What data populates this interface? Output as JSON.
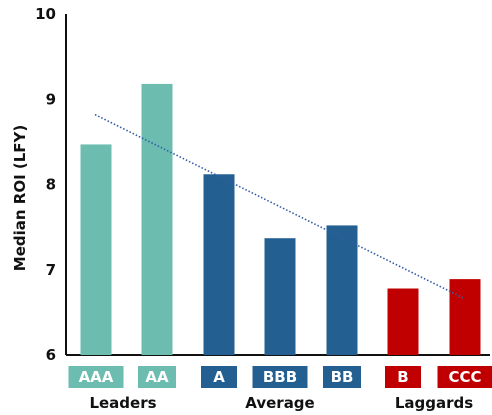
{
  "chart_data": {
    "type": "bar",
    "ylabel": "Median ROI (LFY)",
    "ylim": [
      6,
      10
    ],
    "yticks": [
      "6",
      "7",
      "8",
      "9",
      "10"
    ],
    "grid": false,
    "categories": [
      "AAA",
      "AA",
      "A",
      "BBB",
      "BB",
      "B",
      "CCC"
    ],
    "values": [
      8.47,
      9.18,
      8.12,
      7.37,
      7.52,
      6.78,
      6.89
    ],
    "bar_colors": [
      "#6dbcb0",
      "#6dbcb0",
      "#245f91",
      "#245f91",
      "#245f91",
      "#c00000",
      "#c00000"
    ],
    "groups": [
      {
        "label": "Leaders",
        "members": [
          "AAA",
          "AA"
        ],
        "color": "#6dbcb0"
      },
      {
        "label": "Average",
        "members": [
          "A",
          "BBB",
          "BB"
        ],
        "color": "#245f91"
      },
      {
        "label": "Laggards",
        "members": [
          "B",
          "CCC"
        ],
        "color": "#c00000"
      }
    ],
    "trendline": {
      "style": "dotted",
      "color": "#2f5ea8",
      "start": 8.82,
      "end": 6.67
    }
  }
}
